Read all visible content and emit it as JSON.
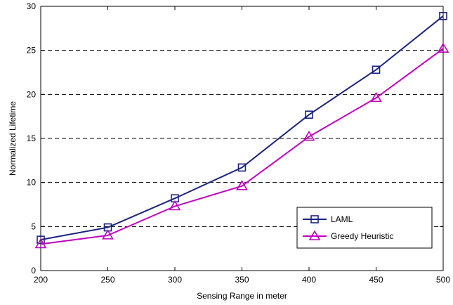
{
  "chart_data": {
    "type": "line",
    "title": "",
    "xlabel": "Sensing Range in meter",
    "ylabel": "Normalized Lifetime",
    "x": [
      200,
      250,
      300,
      350,
      400,
      450,
      500
    ],
    "xlim": [
      200,
      500
    ],
    "ylim": [
      0,
      30
    ],
    "xticks": [
      200,
      250,
      300,
      350,
      400,
      450,
      500
    ],
    "yticks": [
      0,
      5,
      10,
      15,
      20,
      25,
      30
    ],
    "grid": "horizontal dashed",
    "legend_position": "lower-right",
    "series": [
      {
        "name": "LAML",
        "marker": "square",
        "color": "#1a237e",
        "values": [
          3.5,
          4.9,
          8.2,
          11.7,
          17.7,
          22.8,
          28.9
        ]
      },
      {
        "name": "Greedy Heuristic",
        "marker": "triangle",
        "color": "#c000c0",
        "values": [
          3.0,
          4.0,
          7.3,
          9.6,
          15.2,
          19.6,
          25.2
        ]
      }
    ]
  }
}
